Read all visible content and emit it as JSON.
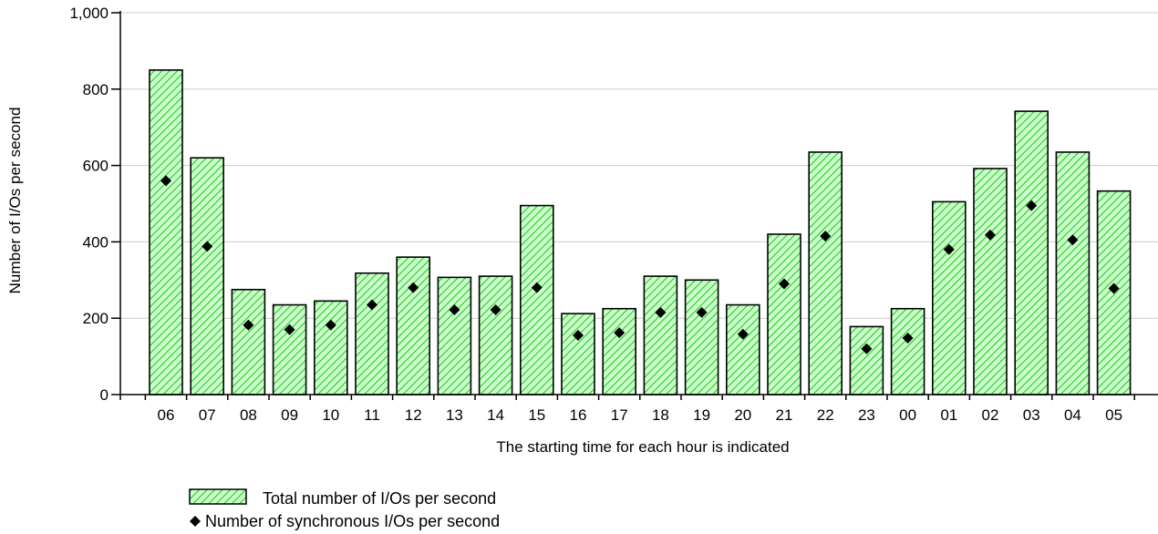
{
  "chart_data": {
    "type": "bar",
    "title": "",
    "xlabel": "The starting time for each hour is indicated",
    "ylabel": "Number of I/Os per second",
    "ylim": [
      0,
      1000
    ],
    "yticks": [
      0,
      200,
      400,
      600,
      800,
      1000
    ],
    "ytick_labels": [
      "0",
      "200",
      "400",
      "600",
      "800",
      "1,000"
    ],
    "grid": true,
    "legend_position": "bottom-left",
    "categories": [
      "06",
      "07",
      "08",
      "09",
      "10",
      "11",
      "12",
      "13",
      "14",
      "15",
      "16",
      "17",
      "18",
      "19",
      "20",
      "21",
      "22",
      "23",
      "00",
      "01",
      "02",
      "03",
      "04",
      "05"
    ],
    "series": [
      {
        "name": "Total number of I/Os per second",
        "kind": "bar",
        "fill": "#ccffcc",
        "hatch": "#33cc33",
        "values": [
          850,
          620,
          275,
          235,
          245,
          318,
          360,
          307,
          310,
          495,
          212,
          225,
          310,
          300,
          235,
          420,
          635,
          178,
          225,
          505,
          592,
          742,
          635,
          533
        ]
      },
      {
        "name": "Number of synchronous I/Os per second",
        "kind": "marker",
        "marker": "diamond",
        "color": "#000000",
        "values": [
          560,
          388,
          182,
          170,
          182,
          235,
          280,
          222,
          222,
          280,
          155,
          162,
          215,
          215,
          158,
          290,
          415,
          120,
          148,
          380,
          418,
          495,
          405,
          278
        ]
      }
    ]
  }
}
